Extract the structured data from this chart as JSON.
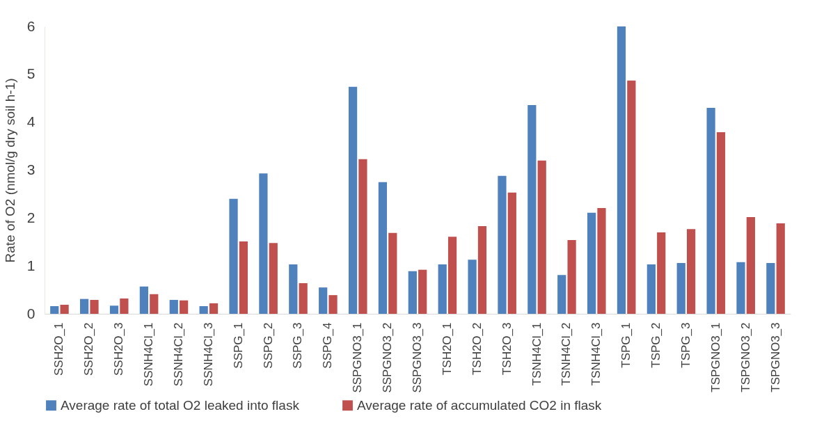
{
  "chart_data": {
    "type": "bar",
    "ylabel": "Rate of O2 (nmol/g dry soil h-1)",
    "categories": [
      "SSH2O_1",
      "SSH2O_2",
      "SSH2O_3",
      "SSNH4Cl_1",
      "SSNH4Cl_2",
      "SSNH4Cl_3",
      "SSPG_1",
      "SSPG_2",
      "SSPG_3",
      "SSPG_4",
      "SSPGNO3_1",
      "SSPGNO3_2",
      "SSPGNO3_3",
      "TSH2O_1",
      "TSH2O_2",
      "TSH2O_3",
      "TSNH4Cl_1",
      "TSNH4Cl_2",
      "TSNH4Cl_3",
      "TSPG_1",
      "TSPG_2",
      "TSPG_3",
      "TSPGNO3_1",
      "TSPGNO3_2",
      "TSPGNO3_3"
    ],
    "series": [
      {
        "name": "Average rate of total O2 leaked into flask",
        "color": "#4f81bd",
        "values": [
          0.16,
          0.31,
          0.17,
          0.57,
          0.29,
          0.16,
          2.4,
          2.93,
          1.03,
          0.55,
          4.74,
          2.75,
          0.89,
          1.03,
          1.13,
          2.88,
          4.36,
          0.81,
          2.11,
          6.0,
          1.03,
          1.06,
          4.3,
          1.08,
          1.06
        ]
      },
      {
        "name": "Average rate of accumulated CO2 in flask",
        "color": "#c0504d",
        "values": [
          0.19,
          0.29,
          0.32,
          0.41,
          0.28,
          0.22,
          1.51,
          1.48,
          0.64,
          0.39,
          3.23,
          1.69,
          0.92,
          1.61,
          1.83,
          2.53,
          3.2,
          1.54,
          2.21,
          4.87,
          1.7,
          1.77,
          3.79,
          2.02,
          1.89
        ]
      }
    ],
    "ylim": [
      0,
      6
    ],
    "yticks": [
      0,
      1,
      2,
      3,
      4,
      5,
      6
    ],
    "grid": false,
    "legend": "bottom"
  }
}
